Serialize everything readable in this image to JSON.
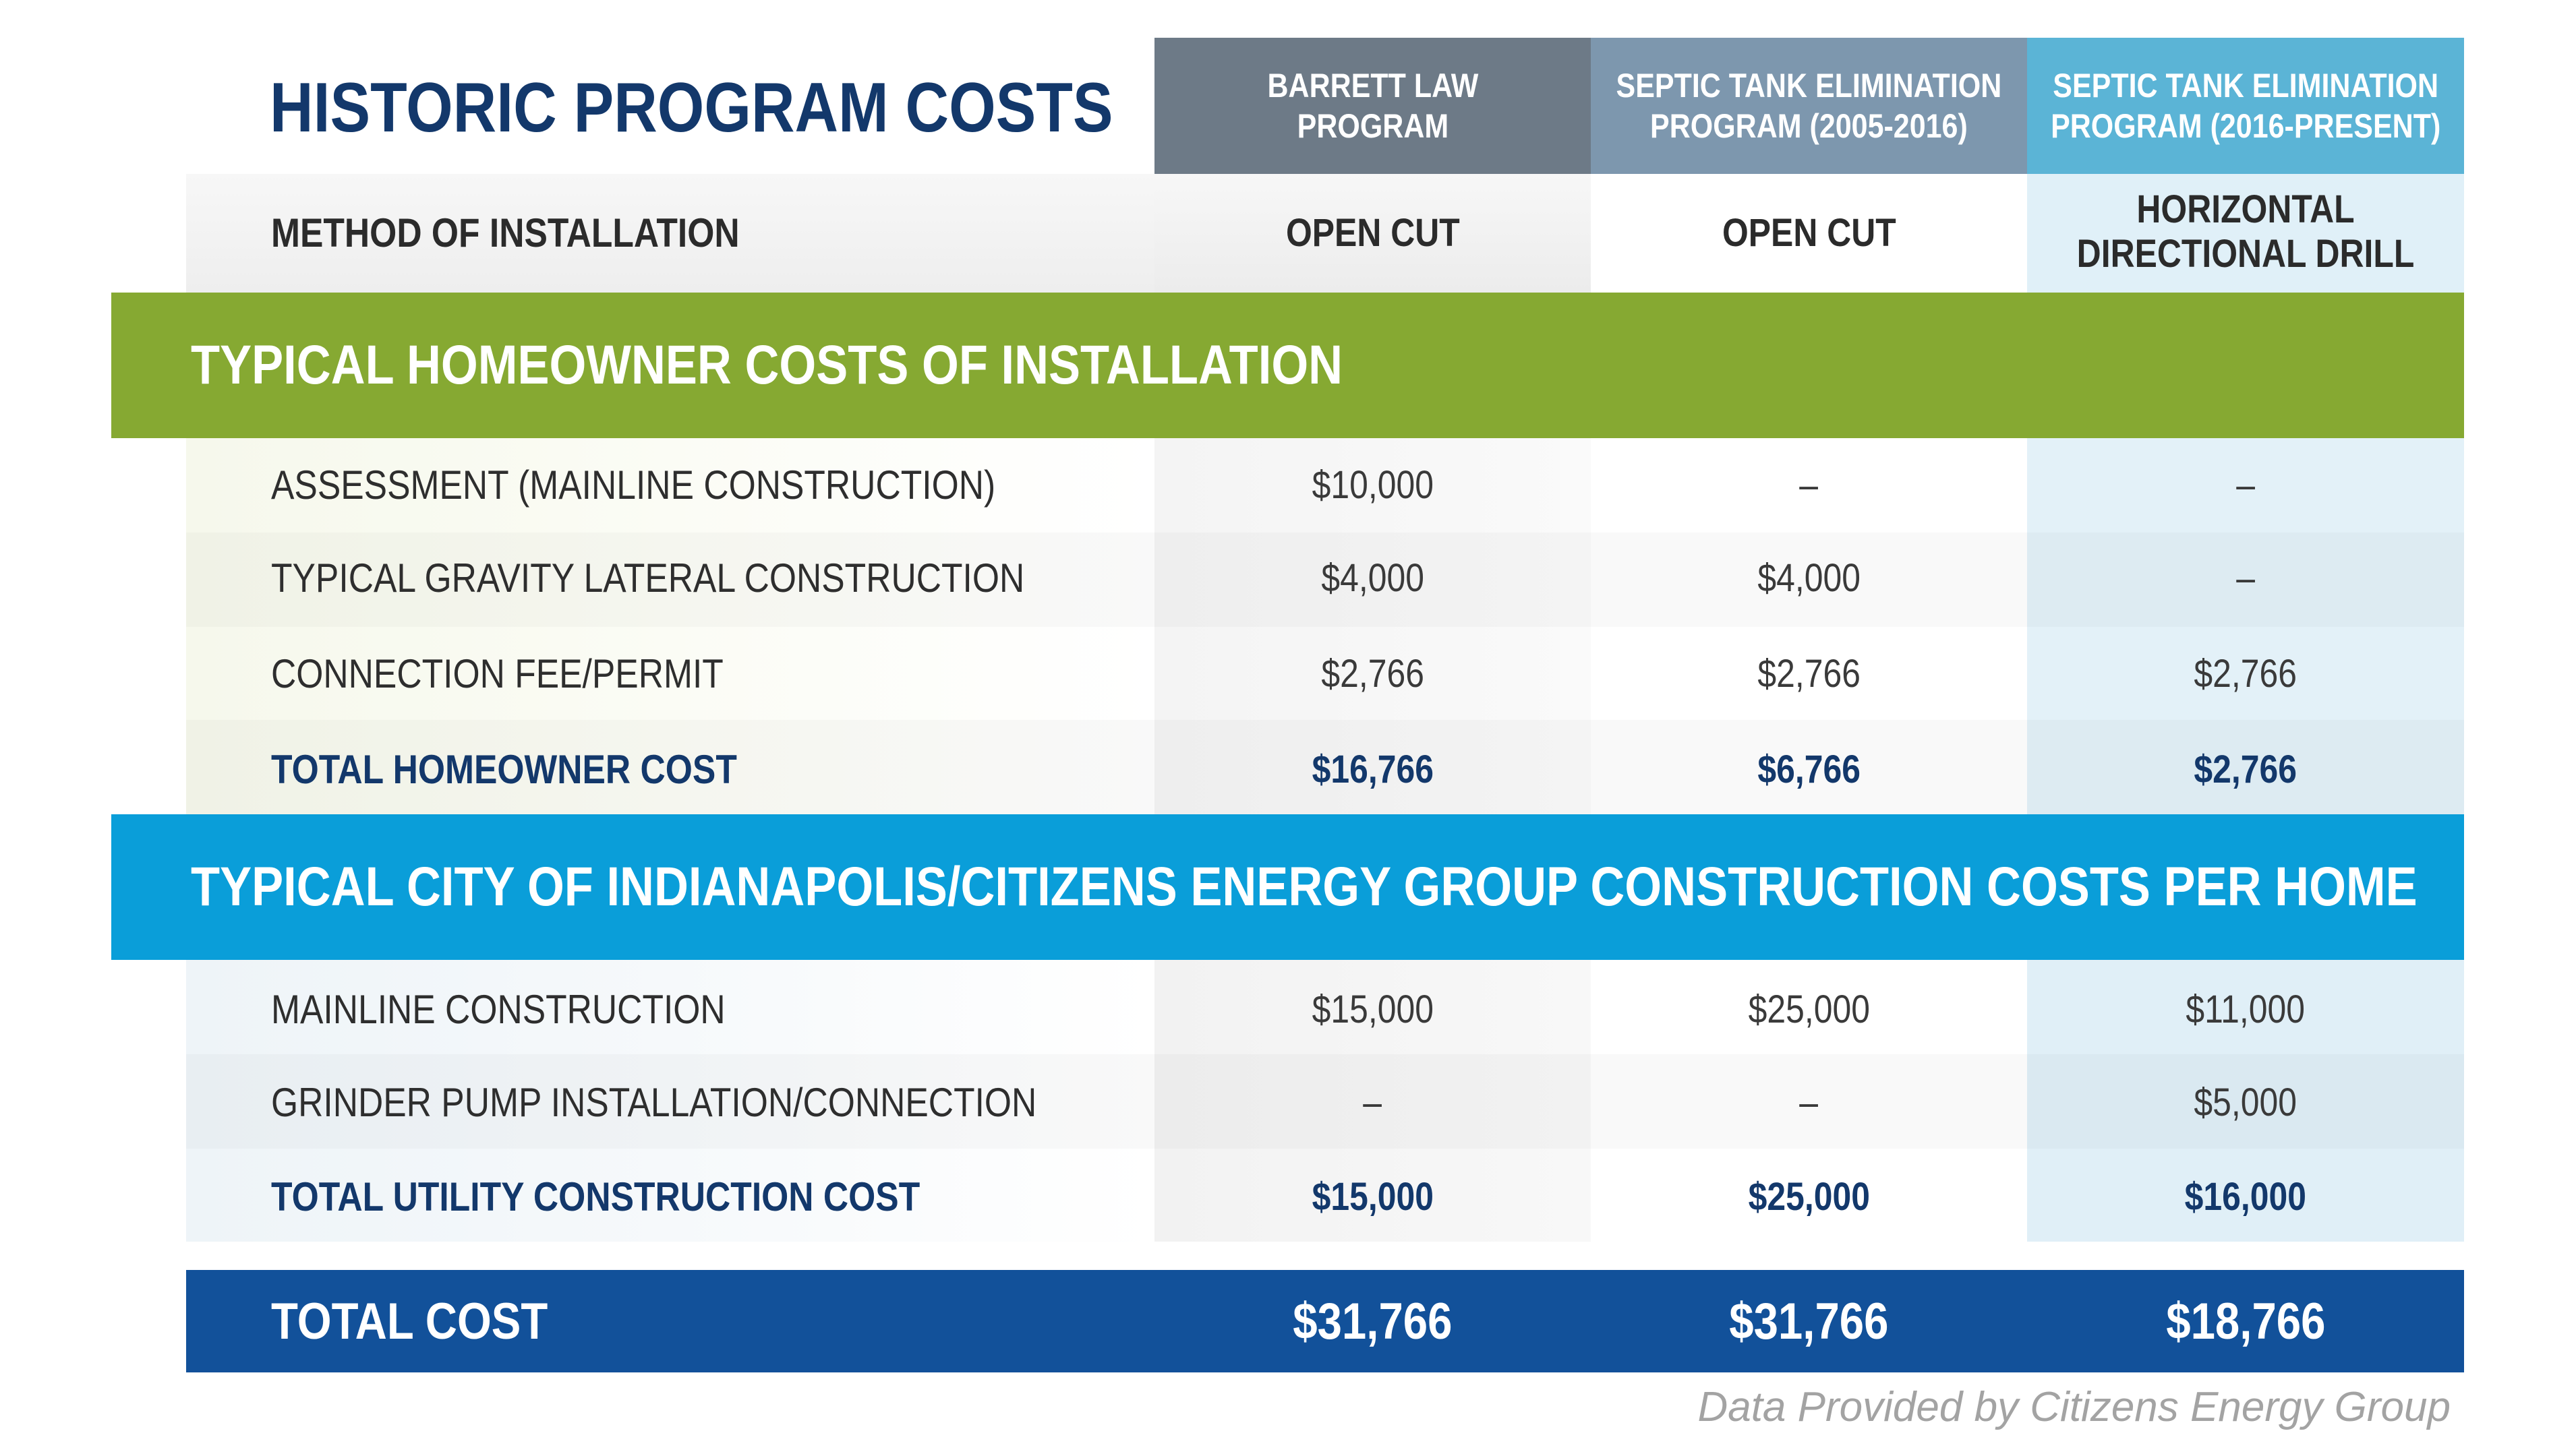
{
  "title": "HISTORIC PROGRAM COSTS",
  "columns": [
    {
      "line1": "BARRETT LAW",
      "line2": "PROGRAM",
      "color": "#6d7a87"
    },
    {
      "line1": "SEPTIC TANK ELIMINATION",
      "line2": "PROGRAM (2005-2016)",
      "color": "#7d97ae"
    },
    {
      "line1": "SEPTIC TANK ELIMINATION",
      "line2": "PROGRAM (2016-PRESENT)",
      "color": "#5bb4d6"
    }
  ],
  "method": {
    "label": "METHOD OF INSTALLATION",
    "values": [
      "OPEN CUT",
      "OPEN CUT"
    ],
    "value3_line1": "HORIZONTAL",
    "value3_line2": "DIRECTIONAL DRILL"
  },
  "section1": {
    "heading": "TYPICAL HOMEOWNER COSTS OF INSTALLATION",
    "color": "#86a932",
    "rows": [
      {
        "label": "ASSESSMENT (MAINLINE CONSTRUCTION)",
        "values": [
          "$10,000",
          "–",
          "–"
        ]
      },
      {
        "label": "TYPICAL GRAVITY LATERAL CONSTRUCTION",
        "values": [
          "$4,000",
          "$4,000",
          "–"
        ]
      },
      {
        "label": "CONNECTION FEE/PERMIT",
        "values": [
          "$2,766",
          "$2,766",
          "$2,766"
        ]
      },
      {
        "label": "TOTAL HOMEOWNER COST",
        "values": [
          "$16,766",
          "$6,766",
          "$2,766"
        ]
      }
    ]
  },
  "section2": {
    "heading": "TYPICAL CITY OF INDIANAPOLIS/CITIZENS ENERGY GROUP CONSTRUCTION COSTS PER HOME",
    "color": "#0a9ed9",
    "rows": [
      {
        "label": "MAINLINE CONSTRUCTION",
        "values": [
          "$15,000",
          "$25,000",
          "$11,000"
        ]
      },
      {
        "label": "GRINDER PUMP INSTALLATION/CONNECTION",
        "values": [
          "–",
          "–",
          "$5,000"
        ]
      },
      {
        "label": "TOTAL UTILITY CONSTRUCTION COST",
        "values": [
          "$15,000",
          "$25,000",
          "$16,000"
        ]
      }
    ]
  },
  "total": {
    "label": "TOTAL COST",
    "values": [
      "$31,766",
      "$31,766",
      "$18,766"
    ],
    "color": "#12519a"
  },
  "credit": "Data Provided by Citizens Energy Group"
}
